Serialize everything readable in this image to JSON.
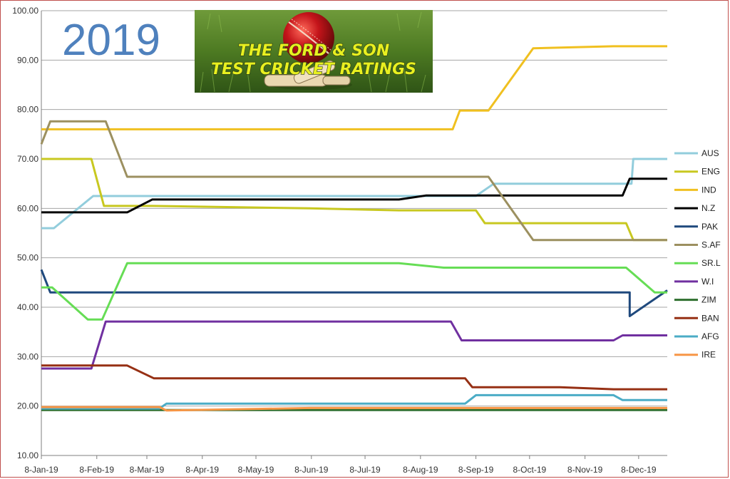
{
  "chart_data": {
    "type": "line",
    "title": "2019",
    "banner_lines": [
      "THE FORD & SON",
      "TEST CRICKET RATINGS"
    ],
    "ylim": [
      10,
      100
    ],
    "yticks": [
      "10.00",
      "20.00",
      "30.00",
      "40.00",
      "50.00",
      "60.00",
      "70.00",
      "80.00",
      "90.00",
      "100.00"
    ],
    "xlim": [
      0,
      350
    ],
    "xticks": [
      {
        "label": "8-Jan-19",
        "day": 0
      },
      {
        "label": "8-Feb-19",
        "day": 31
      },
      {
        "label": "8-Mar-19",
        "day": 59
      },
      {
        "label": "8-Apr-19",
        "day": 90
      },
      {
        "label": "8-May-19",
        "day": 120
      },
      {
        "label": "8-Jun-19",
        "day": 151
      },
      {
        "label": "8-Jul-19",
        "day": 181
      },
      {
        "label": "8-Aug-19",
        "day": 212
      },
      {
        "label": "8-Sep-19",
        "day": 243
      },
      {
        "label": "8-Oct-19",
        "day": 273
      },
      {
        "label": "8-Nov-19",
        "day": 304
      },
      {
        "label": "8-Dec-19",
        "day": 334
      }
    ],
    "grid": true,
    "legend_position": "right",
    "series": [
      {
        "name": "AUS",
        "color": "#92cddc",
        "points": [
          [
            0,
            56
          ],
          [
            7,
            56
          ],
          [
            29,
            62.5
          ],
          [
            243,
            62.5
          ],
          [
            253,
            65
          ],
          [
            330,
            65
          ],
          [
            331,
            70
          ],
          [
            350,
            70
          ]
        ]
      },
      {
        "name": "ENG",
        "color": "#c8c820",
        "points": [
          [
            0,
            70
          ],
          [
            28,
            70
          ],
          [
            35,
            60.5
          ],
          [
            62,
            60.5
          ],
          [
            150,
            60
          ],
          [
            200,
            59.6
          ],
          [
            243,
            59.6
          ],
          [
            248,
            57
          ],
          [
            327,
            57
          ],
          [
            331,
            53.6
          ],
          [
            350,
            53.6
          ]
        ]
      },
      {
        "name": "IND",
        "color": "#f0c020",
        "points": [
          [
            0,
            76
          ],
          [
            230,
            76
          ],
          [
            234,
            79.8
          ],
          [
            250,
            79.8
          ],
          [
            275,
            92.4
          ],
          [
            320,
            92.8
          ],
          [
            350,
            92.8
          ]
        ]
      },
      {
        "name": "N.Z",
        "color": "#000000",
        "points": [
          [
            0,
            59.2
          ],
          [
            48,
            59.2
          ],
          [
            62,
            61.8
          ],
          [
            200,
            61.8
          ],
          [
            215,
            62.6
          ],
          [
            325,
            62.6
          ],
          [
            329,
            66
          ],
          [
            350,
            66
          ]
        ]
      },
      {
        "name": "PAK",
        "color": "#1f497d",
        "points": [
          [
            0,
            47.6
          ],
          [
            5,
            43
          ],
          [
            329,
            43
          ],
          [
            329,
            38.2
          ],
          [
            350,
            43.4
          ]
        ]
      },
      {
        "name": "S.AF",
        "color": "#9c9060",
        "points": [
          [
            0,
            73
          ],
          [
            5,
            77.6
          ],
          [
            36,
            77.6
          ],
          [
            48,
            66.4
          ],
          [
            250,
            66.4
          ],
          [
            275,
            53.6
          ],
          [
            350,
            53.6
          ]
        ]
      },
      {
        "name": "SR.L",
        "color": "#66dd55",
        "points": [
          [
            0,
            44
          ],
          [
            6,
            44
          ],
          [
            26,
            37.5
          ],
          [
            34,
            37.5
          ],
          [
            48,
            48.9
          ],
          [
            200,
            48.9
          ],
          [
            225,
            48
          ],
          [
            327,
            48
          ],
          [
            343,
            43
          ],
          [
            350,
            43
          ]
        ]
      },
      {
        "name": "W.I",
        "color": "#7030a0",
        "points": [
          [
            0,
            27.6
          ],
          [
            28,
            27.6
          ],
          [
            36,
            37.1
          ],
          [
            229,
            37.1
          ],
          [
            235,
            33.3
          ],
          [
            320,
            33.3
          ],
          [
            325,
            34.3
          ],
          [
            350,
            34.3
          ]
        ]
      },
      {
        "name": "ZIM",
        "color": "#2e6f2e",
        "points": [
          [
            0,
            19.2
          ],
          [
            350,
            19.2
          ]
        ]
      },
      {
        "name": "BAN",
        "color": "#963014",
        "points": [
          [
            0,
            28.2
          ],
          [
            48,
            28.2
          ],
          [
            63,
            25.6
          ],
          [
            237,
            25.6
          ],
          [
            241,
            23.8
          ],
          [
            290,
            23.8
          ],
          [
            320,
            23.4
          ],
          [
            350,
            23.4
          ]
        ]
      },
      {
        "name": "AFG",
        "color": "#4bacc6",
        "points": [
          [
            0,
            19.5
          ],
          [
            66,
            19.5
          ],
          [
            70,
            20.5
          ],
          [
            237,
            20.5
          ],
          [
            243,
            22.2
          ],
          [
            320,
            22.2
          ],
          [
            325,
            21.2
          ],
          [
            350,
            21.2
          ]
        ]
      },
      {
        "name": "IRE",
        "color": "#f79646",
        "points": [
          [
            0,
            19.8
          ],
          [
            66,
            19.8
          ],
          [
            70,
            19.1
          ],
          [
            150,
            19.6
          ],
          [
            350,
            19.6
          ]
        ]
      }
    ]
  }
}
